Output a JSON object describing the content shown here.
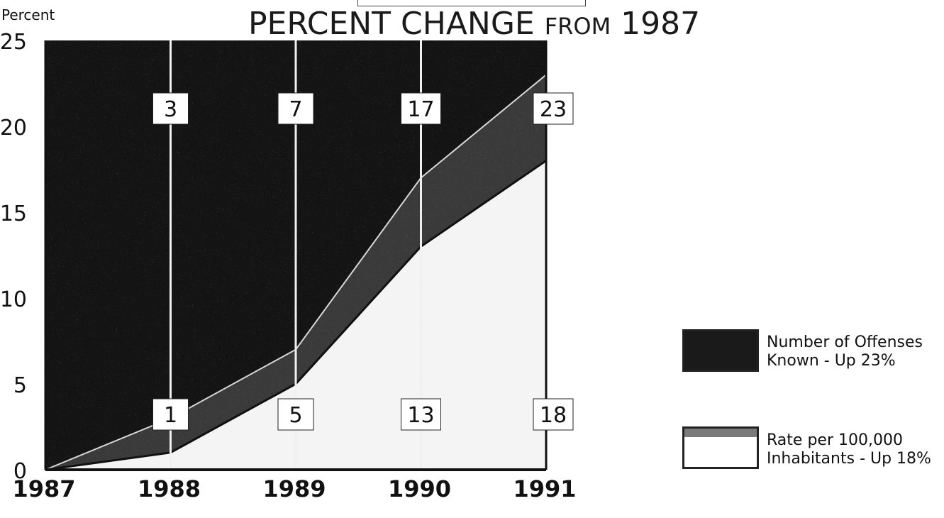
{
  "chart_data": {
    "type": "area",
    "title_main": "PERCENT CHANGE",
    "title_from": "FROM",
    "title_year": "1987",
    "ylabel": "Percent",
    "ylim": [
      0,
      25
    ],
    "yticks": [
      0,
      5,
      10,
      15,
      20,
      25
    ],
    "x": [
      "1987",
      "1988",
      "1989",
      "1990",
      "1991"
    ],
    "series": [
      {
        "name": "Number of Offenses Known - Up 23%",
        "values": [
          0,
          3,
          7,
          17,
          23
        ],
        "color": "#141414"
      },
      {
        "name": "Rate per 100,000 Inhabitants - Up 18%",
        "values": [
          0,
          1,
          5,
          13,
          18
        ],
        "color": "#f4f4f4"
      }
    ],
    "data_labels_top": [
      "3",
      "7",
      "17",
      "23"
    ],
    "data_labels_bottom": [
      "1",
      "5",
      "13",
      "18"
    ],
    "legend_position": "right"
  },
  "legend": [
    {
      "line1": "Number of Offenses",
      "line2": "Known - Up 23%"
    },
    {
      "line1": "Rate per 100,000",
      "line2": "Inhabitants - Up 18%"
    }
  ]
}
